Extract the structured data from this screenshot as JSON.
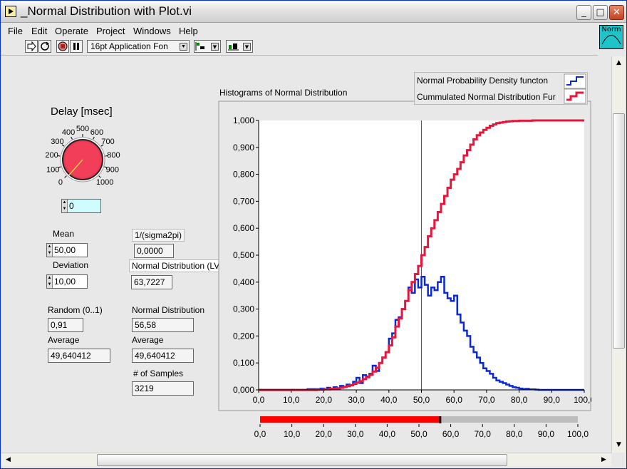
{
  "window": {
    "title": "_Normal Distribution with Plot.vi"
  },
  "menu": [
    "File",
    "Edit",
    "Operate",
    "Project",
    "Windows",
    "Help"
  ],
  "toolbar": {
    "font": "16pt Application Fon",
    "vi_icon_label": "Norm"
  },
  "delay": {
    "label": "Delay [msec]",
    "value": "0",
    "ticks": [
      "0",
      "100",
      "200",
      "300",
      "400",
      "500",
      "600",
      "700",
      "800",
      "900",
      "1000"
    ],
    "level": 0.0
  },
  "mean": {
    "label": "Mean",
    "value": "50,00"
  },
  "deviation": {
    "label": "Deviation",
    "value": "10,00"
  },
  "one_over": {
    "label": "1/(sigma2pi)",
    "value": "0,0000"
  },
  "normal_lv": {
    "label": "Normal Distribution (LV)",
    "value": "63,7227"
  },
  "random": {
    "label": "Random (0..1)",
    "value": "0,91"
  },
  "normal_dist": {
    "label": "Normal Distribution",
    "value": "56,58"
  },
  "average_left": {
    "label": "Average",
    "value": "49,640412"
  },
  "average_right": {
    "label": "Average",
    "value": "49,640412"
  },
  "samples": {
    "label": "# of Samples",
    "value": "3219"
  },
  "colors": {
    "pdf": "#0a28d8",
    "cdf": "#e8163a",
    "slider": "#ff0000",
    "cursor": "#e8163a"
  },
  "chart_data": {
    "type": "line",
    "title": "Histograms of Normal Distribution",
    "xlim": [
      0,
      100
    ],
    "ylim": [
      0,
      1
    ],
    "x_ticks": [
      "0,0",
      "10,0",
      "20,0",
      "30,0",
      "40,0",
      "50,0",
      "60,0",
      "70,0",
      "80,0",
      "90,0",
      "100,0"
    ],
    "y_ticks": [
      "0,000",
      "0,100",
      "0,200",
      "0,300",
      "0,400",
      "0,500",
      "0,600",
      "0,700",
      "0,800",
      "0,900",
      "1,000"
    ],
    "cursor_x": 50,
    "legend_position": "top-right",
    "series": [
      {
        "name": "Normal Probability Density functon",
        "color": "#0a28d8",
        "x": [
          0,
          11,
          15,
          18,
          19,
          20,
          21,
          22,
          23,
          24,
          25,
          26,
          27,
          28,
          29,
          30,
          31,
          32,
          33,
          34,
          35,
          36,
          37,
          38,
          39,
          40,
          41,
          42,
          43,
          44,
          45,
          46,
          47,
          48,
          49,
          50,
          51,
          52,
          53,
          54,
          55,
          56,
          57,
          58,
          59,
          60,
          61,
          62,
          63,
          64,
          65,
          66,
          67,
          68,
          69,
          70,
          71,
          72,
          73,
          74,
          75,
          76,
          77,
          78,
          79,
          80,
          81,
          82,
          83,
          84,
          85,
          86,
          100
        ],
        "y": [
          0,
          0,
          0.003,
          0.003,
          0.005,
          0.003,
          0.008,
          0.005,
          0.01,
          0.005,
          0.015,
          0.012,
          0.02,
          0.018,
          0.03,
          0.045,
          0.025,
          0.055,
          0.05,
          0.06,
          0.09,
          0.07,
          0.1,
          0.12,
          0.14,
          0.19,
          0.21,
          0.26,
          0.27,
          0.3,
          0.33,
          0.38,
          0.36,
          0.41,
          0.38,
          0.42,
          0.39,
          0.35,
          0.38,
          0.37,
          0.4,
          0.42,
          0.36,
          0.34,
          0.33,
          0.35,
          0.28,
          0.25,
          0.22,
          0.2,
          0.16,
          0.14,
          0.12,
          0.1,
          0.08,
          0.07,
          0.06,
          0.045,
          0.035,
          0.03,
          0.025,
          0.02,
          0.015,
          0.01,
          0.008,
          0.005,
          0.003,
          0.004,
          0.002,
          0.002,
          0.001,
          0,
          0
        ]
      },
      {
        "name": "Cummulated Normal Distribution Fur",
        "color": "#e8163a",
        "x": [
          0,
          15,
          18,
          20,
          22,
          24,
          25,
          26,
          27,
          28,
          29,
          30,
          31,
          32,
          33,
          34,
          35,
          36,
          37,
          38,
          39,
          40,
          41,
          42,
          43,
          44,
          45,
          46,
          47,
          48,
          49,
          50,
          51,
          52,
          53,
          54,
          55,
          56,
          57,
          58,
          59,
          60,
          61,
          62,
          63,
          64,
          65,
          66,
          67,
          68,
          69,
          70,
          71,
          72,
          73,
          74,
          75,
          76,
          77,
          78,
          80,
          82,
          84,
          86,
          100
        ],
        "y": [
          0,
          0,
          0.001,
          0.002,
          0.004,
          0.006,
          0.008,
          0.011,
          0.014,
          0.017,
          0.022,
          0.027,
          0.032,
          0.04,
          0.047,
          0.056,
          0.068,
          0.082,
          0.1,
          0.12,
          0.14,
          0.165,
          0.195,
          0.235,
          0.265,
          0.3,
          0.33,
          0.37,
          0.4,
          0.43,
          0.46,
          0.5,
          0.53,
          0.57,
          0.6,
          0.63,
          0.66,
          0.69,
          0.72,
          0.75,
          0.78,
          0.8,
          0.82,
          0.845,
          0.87,
          0.89,
          0.91,
          0.93,
          0.945,
          0.955,
          0.965,
          0.973,
          0.98,
          0.985,
          0.99,
          0.992,
          0.994,
          0.996,
          0.997,
          0.998,
          0.999,
          0.999,
          1,
          1,
          1
        ]
      }
    ]
  },
  "slider": {
    "value": 56.58,
    "range": [
      0,
      100
    ],
    "ticks": [
      "0,0",
      "10,0",
      "20,0",
      "30,0",
      "40,0",
      "50,0",
      "60,0",
      "70,0",
      "80,0",
      "90,0",
      "100,0"
    ]
  }
}
